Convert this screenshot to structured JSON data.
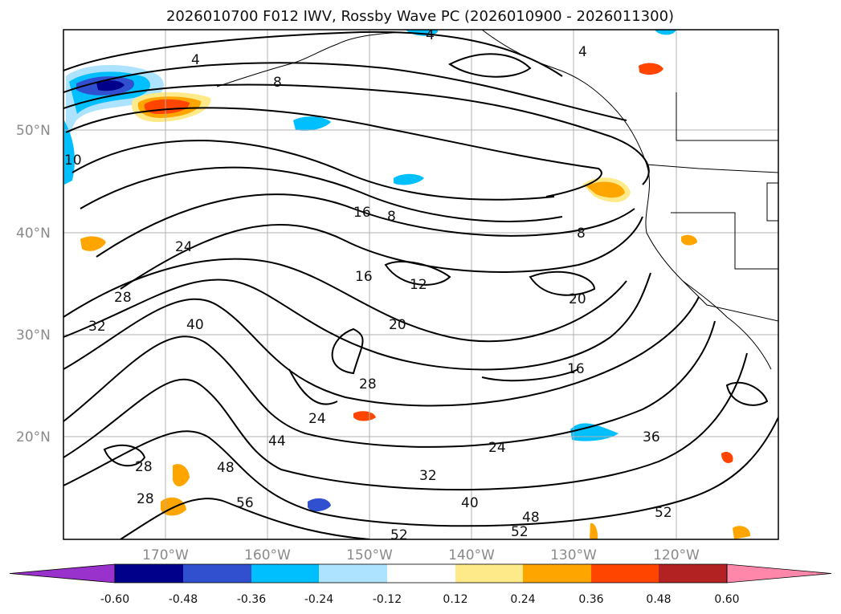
{
  "title": "2026010700 F012 IWV, Rossby Wave PC (2026010900 - 2026011300)",
  "map": {
    "lon_ticks": [
      "170°W",
      "160°W",
      "150°W",
      "140°W",
      "130°W",
      "120°W"
    ],
    "lat_ticks": [
      "50°N",
      "40°N",
      "30°N",
      "20°N"
    ],
    "grid": true
  },
  "colorbar": {
    "ticks": [
      "-0.60",
      "-0.48",
      "-0.36",
      "-0.24",
      "-0.12",
      "0.12",
      "0.24",
      "0.36",
      "0.48",
      "0.60"
    ],
    "colors": [
      "#9932cc",
      "#00008b",
      "#3050d0",
      "#00bfff",
      "#aee3ff",
      "#ffffff",
      "#ffea8a",
      "#ffa500",
      "#ff4500",
      "#b22222",
      "#ff88aa"
    ],
    "extend": "both"
  },
  "contour_labels": [
    "4",
    "4",
    "4",
    "8",
    "8",
    "8",
    "12",
    "16",
    "16",
    "16",
    "20",
    "20",
    "24",
    "24",
    "24",
    "28",
    "28",
    "28",
    "28",
    "32",
    "32",
    "36",
    "40",
    "40",
    "44",
    "48",
    "48",
    "52",
    "52",
    "52",
    "56",
    "10"
  ]
}
